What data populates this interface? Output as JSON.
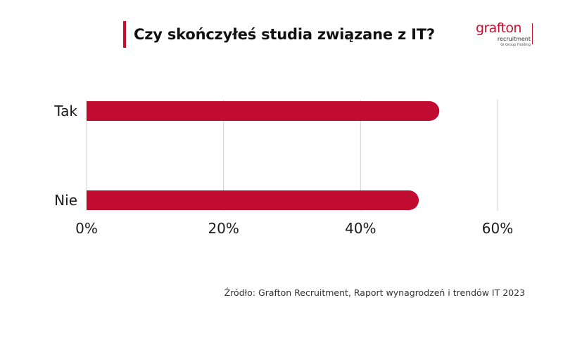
{
  "title": "Czy skończyłeś studia związane z IT?",
  "logo": {
    "word": "grafton",
    "sub1": "recruitment",
    "sub2": "Gi Group Holding"
  },
  "colors": {
    "accent": "#c8102e",
    "bar": "#c20b30",
    "grid": "#d0d0d0",
    "text": "#1a1a1a"
  },
  "chart_data": {
    "type": "bar",
    "orientation": "horizontal",
    "title": "Czy skończyłeś studia związane z IT?",
    "categories": [
      "Tak",
      "Nie"
    ],
    "values": [
      51.5,
      48.5
    ],
    "unit": "%",
    "xlim": [
      0,
      60
    ],
    "xticks": [
      0,
      20,
      40,
      60
    ],
    "xtick_labels": [
      "0%",
      "20%",
      "40%",
      "60%"
    ],
    "grid": true,
    "legend": "none"
  },
  "source": "Źródło: Grafton Recruitment, Raport wynagrodzeń i trendów IT 2023"
}
